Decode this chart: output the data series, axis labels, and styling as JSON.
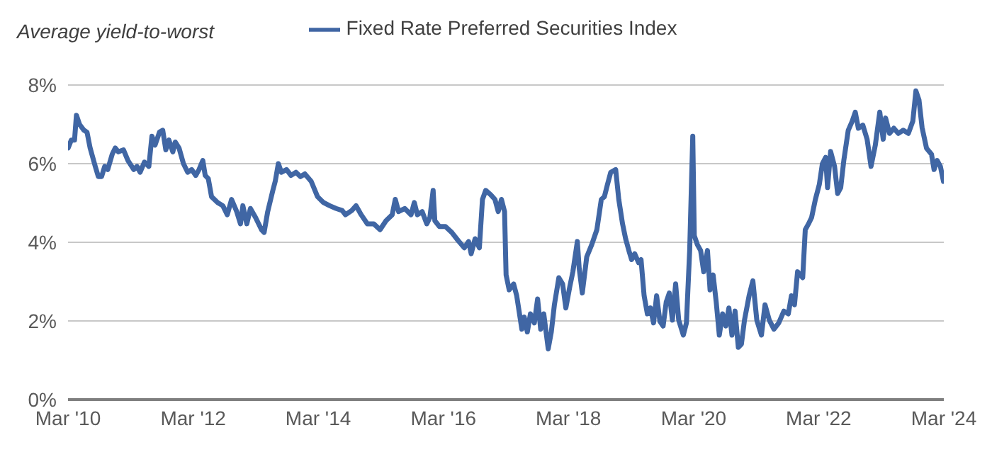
{
  "chart_data": {
    "type": "line",
    "ylabel": "Average yield-to-worst",
    "legend": "top",
    "grid": "y",
    "line_style": "solid",
    "xlim": [
      "2010-03-01",
      "2024-03-01"
    ],
    "xticks": [
      {
        "value": "2010-03-01",
        "label": "Mar '10"
      },
      {
        "value": "2012-03-01",
        "label": "Mar '12"
      },
      {
        "value": "2014-03-01",
        "label": "Mar '14"
      },
      {
        "value": "2016-03-01",
        "label": "Mar '16"
      },
      {
        "value": "2018-03-01",
        "label": "Mar '18"
      },
      {
        "value": "2020-03-01",
        "label": "Mar '20"
      },
      {
        "value": "2022-03-01",
        "label": "Mar '22"
      },
      {
        "value": "2024-03-01",
        "label": "Mar '24"
      }
    ],
    "ylim": [
      0,
      8
    ],
    "yticks": [
      {
        "value": 0,
        "label": "0%"
      },
      {
        "value": 2,
        "label": "2%"
      },
      {
        "value": 4,
        "label": "4%"
      },
      {
        "value": 6,
        "label": "6%"
      },
      {
        "value": 8,
        "label": "8%"
      }
    ],
    "series": [
      {
        "name": "Fixed Rate Preferred Securities Index",
        "color": "#4066a4",
        "x": [
          "2010-03-02",
          "2010-03-20",
          "2010-04-08",
          "2010-04-19",
          "2010-05-07",
          "2010-06-02",
          "2010-06-20",
          "2010-07-08",
          "2010-08-07",
          "2010-08-25",
          "2010-09-13",
          "2010-10-01",
          "2010-10-19",
          "2010-11-14",
          "2010-12-02",
          "2010-12-20",
          "2011-01-19",
          "2011-02-14",
          "2011-03-20",
          "2011-04-08",
          "2011-04-26",
          "2011-05-21",
          "2011-06-16",
          "2011-07-04",
          "2011-07-22",
          "2011-08-17",
          "2011-09-05",
          "2011-09-23",
          "2011-10-11",
          "2011-11-03",
          "2011-11-17",
          "2011-12-09",
          "2012-01-04",
          "2012-01-29",
          "2012-02-21",
          "2012-03-16",
          "2012-04-04",
          "2012-04-26",
          "2012-05-10",
          "2012-05-28",
          "2012-06-16",
          "2012-07-22",
          "2012-08-21",
          "2012-09-16",
          "2012-10-11",
          "2012-11-10",
          "2012-12-02",
          "2012-12-16",
          "2013-01-08",
          "2013-01-29",
          "2013-02-28",
          "2013-04-04",
          "2013-04-19",
          "2013-05-10",
          "2013-06-09",
          "2013-06-23",
          "2013-07-11",
          "2013-07-29",
          "2013-08-28",
          "2013-09-23",
          "2013-10-22",
          "2013-11-17",
          "2013-12-13",
          "2014-01-19",
          "2014-02-25",
          "2014-04-01",
          "2014-05-07",
          "2014-06-13",
          "2014-07-19",
          "2014-08-07",
          "2014-09-13",
          "2014-10-08",
          "2014-11-07",
          "2014-12-13",
          "2015-01-19",
          "2015-02-25",
          "2015-04-01",
          "2015-05-07",
          "2015-05-25",
          "2015-06-13",
          "2015-07-19",
          "2015-08-25",
          "2015-09-13",
          "2015-10-01",
          "2015-10-29",
          "2015-11-25",
          "2015-12-13",
          "2016-01-01",
          "2016-01-11",
          "2016-02-07",
          "2016-03-13",
          "2016-04-19",
          "2016-05-25",
          "2016-07-01",
          "2016-07-26",
          "2016-08-10",
          "2016-09-02",
          "2016-09-27",
          "2016-10-15",
          "2016-11-03",
          "2016-12-02",
          "2016-12-27",
          "2017-01-15",
          "2017-02-03",
          "2017-02-21",
          "2017-03-02",
          "2017-03-20",
          "2017-04-15",
          "2017-05-03",
          "2017-06-02",
          "2017-06-16",
          "2017-07-04",
          "2017-07-22",
          "2017-08-14",
          "2017-09-02",
          "2017-09-20",
          "2017-10-08",
          "2017-11-03",
          "2017-11-21",
          "2017-12-09",
          "2018-01-04",
          "2018-01-26",
          "2018-02-14",
          "2018-03-09",
          "2018-03-27",
          "2018-04-22",
          "2018-05-03",
          "2018-05-21",
          "2018-06-16",
          "2018-07-15",
          "2018-08-14",
          "2018-09-09",
          "2018-09-27",
          "2018-10-15",
          "2018-11-03",
          "2018-12-02",
          "2018-12-20",
          "2019-01-11",
          "2019-01-29",
          "2019-02-17",
          "2019-03-05",
          "2019-03-23",
          "2019-04-15",
          "2019-04-29",
          "2019-05-17",
          "2019-06-05",
          "2019-06-23",
          "2019-07-11",
          "2019-07-29",
          "2019-08-17",
          "2019-09-05",
          "2019-09-23",
          "2019-10-11",
          "2019-10-29",
          "2019-11-17",
          "2019-12-05",
          "2020-01-01",
          "2020-01-19",
          "2020-02-07",
          "2020-02-25",
          "2020-03-05",
          "2020-03-23",
          "2020-04-11",
          "2020-04-29",
          "2020-05-21",
          "2020-06-05",
          "2020-06-23",
          "2020-07-11",
          "2020-07-29",
          "2020-08-17",
          "2020-09-05",
          "2020-09-23",
          "2020-10-11",
          "2020-10-29",
          "2020-11-17",
          "2020-12-05",
          "2020-12-23",
          "2021-01-19",
          "2021-02-10",
          "2021-03-05",
          "2021-04-01",
          "2021-04-22",
          "2021-05-17",
          "2021-06-13",
          "2021-07-11",
          "2021-08-10",
          "2021-09-05",
          "2021-09-23",
          "2021-10-11",
          "2021-10-29",
          "2021-11-28",
          "2021-12-13",
          "2022-01-01",
          "2022-01-19",
          "2022-02-10",
          "2022-03-05",
          "2022-03-23",
          "2022-04-11",
          "2022-04-22",
          "2022-05-10",
          "2022-06-02",
          "2022-06-20",
          "2022-07-08",
          "2022-07-26",
          "2022-08-21",
          "2022-09-13",
          "2022-10-01",
          "2022-10-19",
          "2022-11-14",
          "2022-12-09",
          "2023-01-01",
          "2023-01-26",
          "2023-02-21",
          "2023-03-13",
          "2023-03-27",
          "2023-04-19",
          "2023-05-14",
          "2023-06-09",
          "2023-07-08",
          "2023-08-07",
          "2023-09-02",
          "2023-09-20",
          "2023-10-08",
          "2023-10-26",
          "2023-11-21",
          "2023-12-20",
          "2024-01-04",
          "2024-01-22",
          "2024-02-10",
          "2024-02-28"
        ],
        "values": [
          6.4,
          6.6,
          6.6,
          7.23,
          7.0,
          6.85,
          6.8,
          6.4,
          5.93,
          5.67,
          5.67,
          5.93,
          5.85,
          6.24,
          6.4,
          6.3,
          6.35,
          6.08,
          5.85,
          5.93,
          5.78,
          6.04,
          5.93,
          6.7,
          6.47,
          6.8,
          6.85,
          6.35,
          6.6,
          6.3,
          6.55,
          6.4,
          6.0,
          5.78,
          5.85,
          5.7,
          5.85,
          6.08,
          5.7,
          5.62,
          5.16,
          5.01,
          4.93,
          4.7,
          5.09,
          4.78,
          4.47,
          4.93,
          4.47,
          4.86,
          4.63,
          4.32,
          4.25,
          4.78,
          5.32,
          5.55,
          6.0,
          5.78,
          5.85,
          5.7,
          5.78,
          5.67,
          5.74,
          5.55,
          5.16,
          5.01,
          4.93,
          4.86,
          4.81,
          4.7,
          4.81,
          4.93,
          4.7,
          4.47,
          4.47,
          4.32,
          4.55,
          4.7,
          5.09,
          4.78,
          4.86,
          4.7,
          5.01,
          4.7,
          4.78,
          4.47,
          4.63,
          5.32,
          4.55,
          4.4,
          4.4,
          4.25,
          4.05,
          3.86,
          4.02,
          3.71,
          4.09,
          3.86,
          5.09,
          5.32,
          5.21,
          5.09,
          4.78,
          5.09,
          4.78,
          3.17,
          2.79,
          2.94,
          2.64,
          1.79,
          2.1,
          1.72,
          2.18,
          1.95,
          2.56,
          1.79,
          2.18,
          1.29,
          1.72,
          2.41,
          3.1,
          2.94,
          2.33,
          2.87,
          3.25,
          4.02,
          3.33,
          2.71,
          3.63,
          3.94,
          4.32,
          5.09,
          5.16,
          5.47,
          5.78,
          5.85,
          5.09,
          4.47,
          4.09,
          3.79,
          3.56,
          3.71,
          3.48,
          3.56,
          2.64,
          2.18,
          2.33,
          1.95,
          2.64,
          1.99,
          1.87,
          2.48,
          2.71,
          2.02,
          2.94,
          2.02,
          1.64,
          1.95,
          3.79,
          6.7,
          4.17,
          3.94,
          3.79,
          3.25,
          3.79,
          2.79,
          3.17,
          2.48,
          1.64,
          2.18,
          1.87,
          2.33,
          1.64,
          2.25,
          1.33,
          1.41,
          2.02,
          2.64,
          3.02,
          2.02,
          1.64,
          2.41,
          2.02,
          1.79,
          1.95,
          2.25,
          2.18,
          2.64,
          2.41,
          3.25,
          3.1,
          4.32,
          4.47,
          4.63,
          5.09,
          5.47,
          6.0,
          6.16,
          5.39,
          6.31,
          5.93,
          5.24,
          5.39,
          6.08,
          6.85,
          7.08,
          7.31,
          6.9,
          6.98,
          6.62,
          5.93,
          6.47,
          7.31,
          6.62,
          7.16,
          6.77,
          6.9,
          6.77,
          6.85,
          6.77,
          7.08,
          7.85,
          7.62,
          6.92,
          6.39,
          6.24,
          5.85,
          6.08,
          5.93,
          5.55
        ]
      }
    ]
  }
}
